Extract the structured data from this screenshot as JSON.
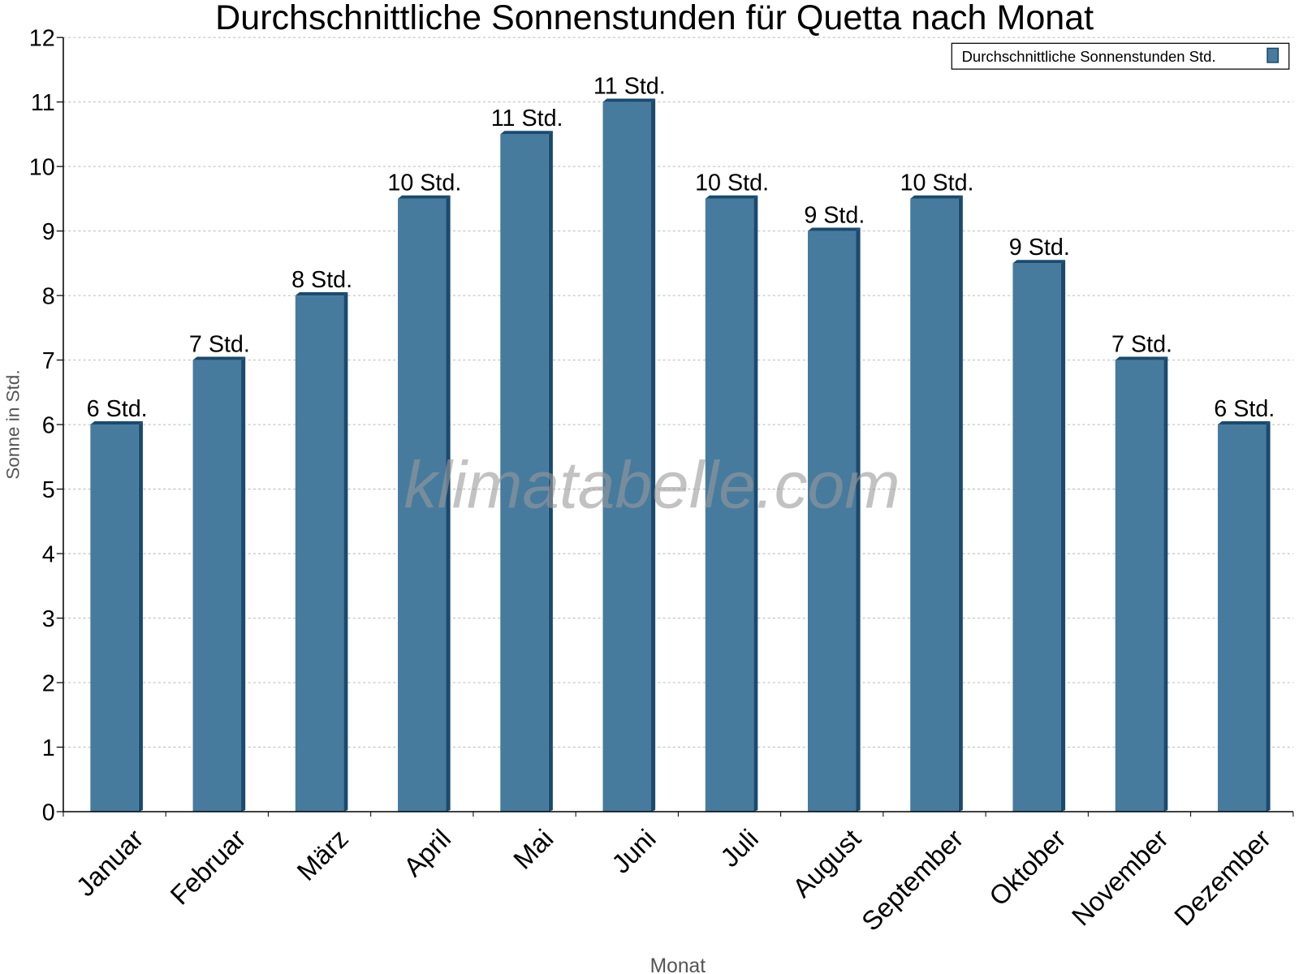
{
  "chart_data": {
    "type": "bar",
    "title": "Durchschnittliche Sonnenstunden für Quetta nach Monat",
    "xlabel": "Monat",
    "ylabel": "Sonne in Std.",
    "ylim": [
      0,
      12
    ],
    "yticks": [
      "0",
      "1",
      "2",
      "3",
      "4",
      "5",
      "6",
      "7",
      "8",
      "9",
      "10",
      "11",
      "12"
    ],
    "grid": true,
    "legend_placement": "top-right",
    "categories": [
      "Januar",
      "Februar",
      "März",
      "April",
      "Mai",
      "Juni",
      "Juli",
      "August",
      "September",
      "Oktober",
      "November",
      "Dezember"
    ],
    "series": [
      {
        "name": "Durchschnittliche Sonnenstunden Std.",
        "values": [
          6,
          7,
          8,
          9.5,
          10.5,
          11,
          9.5,
          9,
          9.5,
          8.5,
          7,
          6
        ],
        "data_labels": [
          "6 Std.",
          "7 Std.",
          "8 Std.",
          "10 Std.",
          "11 Std.",
          "11 Std.",
          "10 Std.",
          "9 Std.",
          "10 Std.",
          "9 Std.",
          "7 Std.",
          "6 Std."
        ],
        "color": "#467b9e",
        "side_color": "#1a4a6e"
      }
    ],
    "watermark": "klimatabelle.com"
  }
}
